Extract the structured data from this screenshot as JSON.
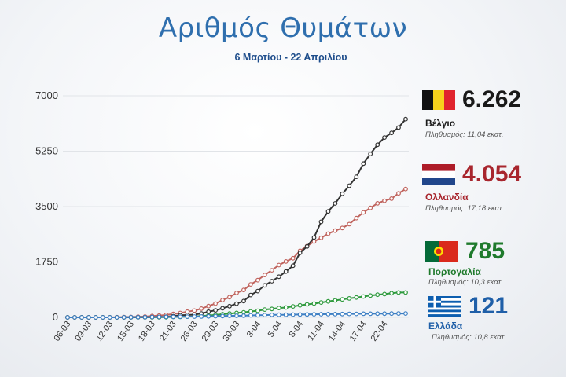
{
  "title": "Αριθμός Θυμάτων",
  "subtitle": "6 Μαρτίου - 22 Απριλίου",
  "chart_data": {
    "type": "line",
    "title": "Αριθμός Θυμάτων",
    "subtitle": "6 Μαρτίου - 22 Απριλίου",
    "ylim": [
      0,
      7000
    ],
    "yticks": [
      "0",
      "1750",
      "3500",
      "5250",
      "7000"
    ],
    "ytick_values": [
      0,
      1750,
      3500,
      5250,
      7000
    ],
    "xtick_labels": [
      "06-03",
      "09-03",
      "12-03",
      "15-03",
      "18-03",
      "21-03",
      "26-03",
      "29-03",
      "30-03",
      "3-04",
      "5-04",
      "8-04",
      "11-04",
      "14-04",
      "17-04",
      "22-04"
    ],
    "xtick_indices": [
      0,
      3,
      6,
      9,
      12,
      15,
      18,
      21,
      24,
      27,
      30,
      33,
      36,
      39,
      42,
      45
    ],
    "grid": true,
    "series": [
      {
        "name": "Βέλγιο",
        "color": "#333333",
        "values": [
          0,
          0,
          0,
          0,
          0,
          0,
          0,
          0,
          0,
          3,
          4,
          5,
          10,
          14,
          21,
          37,
          67,
          75,
          88,
          122,
          178,
          220,
          289,
          353,
          431,
          513,
          705,
          828,
          1011,
          1143,
          1283,
          1447,
          1632,
          2035,
          2240,
          2523,
          3019,
          3346,
          3600,
          3903,
          4157,
          4440,
          4857,
          5163,
          5453,
          5683,
          5828,
          5998,
          6262
        ]
      },
      {
        "name": "Ολλανδία",
        "color": "#c0645e",
        "values": [
          0,
          0,
          0,
          0,
          0,
          0,
          0,
          5,
          10,
          12,
          20,
          24,
          43,
          58,
          76,
          106,
          136,
          179,
          213,
          276,
          356,
          434,
          546,
          639,
          771,
          864,
          1039,
          1173,
          1339,
          1487,
          1651,
          1766,
          1867,
          2101,
          2248,
          2396,
          2511,
          2643,
          2737,
          2823,
          2945,
          3134,
          3315,
          3459,
          3601,
          3684,
          3751,
          3916,
          4054
        ]
      },
      {
        "name": "Πορτογαλία",
        "color": "#2f9a3e",
        "values": [
          0,
          0,
          0,
          0,
          0,
          0,
          0,
          0,
          0,
          0,
          0,
          1,
          2,
          3,
          6,
          12,
          14,
          23,
          33,
          43,
          60,
          76,
          100,
          119,
          140,
          160,
          187,
          209,
          246,
          266,
          295,
          311,
          345,
          380,
          409,
          435,
          470,
          504,
          535,
          567,
          599,
          629,
          657,
          687,
          714,
          735,
          762,
          785,
          785
        ]
      },
      {
        "name": "Ελλάδα",
        "color": "#3d7fc4",
        "values": [
          0,
          0,
          0,
          0,
          0,
          0,
          1,
          1,
          3,
          4,
          5,
          6,
          10,
          13,
          15,
          17,
          20,
          22,
          26,
          28,
          32,
          38,
          43,
          49,
          50,
          53,
          63,
          68,
          73,
          79,
          81,
          83,
          86,
          90,
          93,
          98,
          99,
          101,
          102,
          105,
          108,
          110,
          113,
          114,
          116,
          117,
          119,
          121,
          121
        ]
      }
    ]
  },
  "legend": [
    {
      "value": "6.262",
      "country": "Βέλγιο",
      "pop": "Πληθυσμός: 11,04 εκατ.",
      "color": "#1a1a1a",
      "country_color": "#1a1a1a",
      "flag": "flag-belgium-icon"
    },
    {
      "value": "4.054",
      "country": "Ολλανδία",
      "pop": "Πληθυσμός: 17,18 εκατ.",
      "color": "#a8262e",
      "country_color": "#a8262e",
      "flag": "flag-netherlands-icon"
    },
    {
      "value": "785",
      "country": "Πορτογαλία",
      "pop": "Πληθυσμός: 10,3 εκατ.",
      "color": "#1f7a2c",
      "country_color": "#1f7a2c",
      "flag": "flag-portugal-icon"
    },
    {
      "value": "121",
      "country": "Ελλάδα",
      "pop": "Πληθυσμός: 10,8 εκατ.",
      "color": "#1f5fa8",
      "country_color": "#1f5fa8",
      "flag": "flag-greece-icon"
    }
  ]
}
